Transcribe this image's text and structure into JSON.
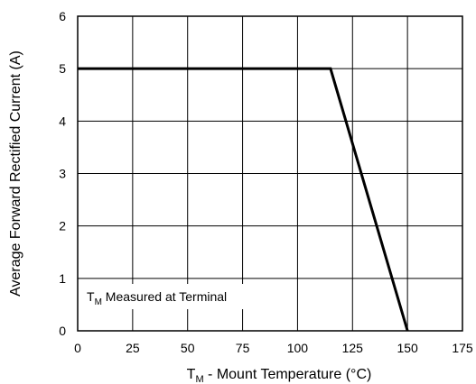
{
  "chart_data": {
    "type": "line",
    "title": "",
    "xlabel": {
      "prefix": "T",
      "sub": "M",
      "rest": " - Mount Temperature (°C)"
    },
    "ylabel": "Average Forward Rectified Current (A)",
    "xlim": [
      0,
      175
    ],
    "ylim": [
      0,
      6
    ],
    "xticks": [
      0,
      25,
      50,
      75,
      100,
      125,
      150,
      175
    ],
    "yticks": [
      0,
      1,
      2,
      3,
      4,
      5,
      6
    ],
    "grid": true,
    "series": [
      {
        "x": [
          0,
          115,
          150
        ],
        "y": [
          5,
          5,
          0
        ],
        "color": "#000000"
      }
    ],
    "annotation": {
      "prefix": "T",
      "sub": "M",
      "rest": " Measured at Terminal"
    }
  }
}
